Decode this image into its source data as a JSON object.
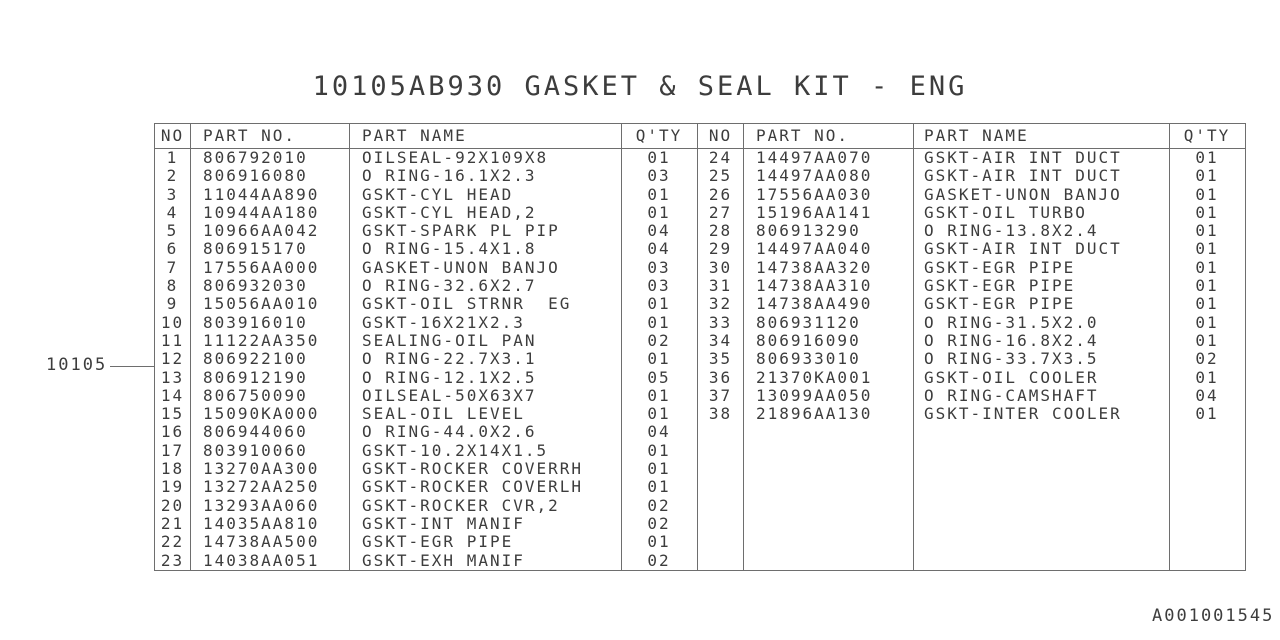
{
  "title": "10105AB930 GASKET & SEAL KIT - ENG",
  "figure_label": "10105",
  "doc_number": "A001001545",
  "colors": {
    "ink": "#3d3d3d",
    "line": "#6e6e6e"
  },
  "tables": [
    {
      "headers": {
        "no": "NO",
        "part_no": "PART NO.",
        "part_name": "PART NAME",
        "qty": "Q'TY"
      },
      "rows": [
        {
          "no": "1",
          "part_no": "806792010",
          "part_name": "OILSEAL-92X109X8",
          "qty": "01"
        },
        {
          "no": "2",
          "part_no": "806916080",
          "part_name": "O RING-16.1X2.3",
          "qty": "03"
        },
        {
          "no": "3",
          "part_no": "11044AA890",
          "part_name": "GSKT-CYL HEAD",
          "qty": "01"
        },
        {
          "no": "4",
          "part_no": "10944AA180",
          "part_name": "GSKT-CYL HEAD,2",
          "qty": "01"
        },
        {
          "no": "5",
          "part_no": "10966AA042",
          "part_name": "GSKT-SPARK PL PIP",
          "qty": "04"
        },
        {
          "no": "6",
          "part_no": "806915170",
          "part_name": "O RING-15.4X1.8",
          "qty": "04"
        },
        {
          "no": "7",
          "part_no": "17556AA000",
          "part_name": "GASKET-UNON BANJO",
          "qty": "03"
        },
        {
          "no": "8",
          "part_no": "806932030",
          "part_name": "O RING-32.6X2.7",
          "qty": "03"
        },
        {
          "no": "9",
          "part_no": "15056AA010",
          "part_name": "GSKT-OIL STRNR  EG",
          "qty": "01"
        },
        {
          "no": "10",
          "part_no": "803916010",
          "part_name": "GSKT-16X21X2.3",
          "qty": "01"
        },
        {
          "no": "11",
          "part_no": "11122AA350",
          "part_name": "SEALING-OIL PAN",
          "qty": "02"
        },
        {
          "no": "12",
          "part_no": "806922100",
          "part_name": "O RING-22.7X3.1",
          "qty": "01"
        },
        {
          "no": "13",
          "part_no": "806912190",
          "part_name": "O RING-12.1X2.5",
          "qty": "05"
        },
        {
          "no": "14",
          "part_no": "806750090",
          "part_name": "OILSEAL-50X63X7",
          "qty": "01"
        },
        {
          "no": "15",
          "part_no": "15090KA000",
          "part_name": "SEAL-OIL LEVEL",
          "qty": "01"
        },
        {
          "no": "16",
          "part_no": "806944060",
          "part_name": "O RING-44.0X2.6",
          "qty": "04"
        },
        {
          "no": "17",
          "part_no": "803910060",
          "part_name": "GSKT-10.2X14X1.5",
          "qty": "01"
        },
        {
          "no": "18",
          "part_no": "13270AA300",
          "part_name": "GSKT-ROCKER COVERRH",
          "qty": "01"
        },
        {
          "no": "19",
          "part_no": "13272AA250",
          "part_name": "GSKT-ROCKER COVERLH",
          "qty": "01"
        },
        {
          "no": "20",
          "part_no": "13293AA060",
          "part_name": "GSKT-ROCKER CVR,2",
          "qty": "02"
        },
        {
          "no": "21",
          "part_no": "14035AA810",
          "part_name": "GSKT-INT MANIF",
          "qty": "02"
        },
        {
          "no": "22",
          "part_no": "14738AA500",
          "part_name": "GSKT-EGR PIPE",
          "qty": "01"
        },
        {
          "no": "23",
          "part_no": "14038AA051",
          "part_name": "GSKT-EXH MANIF",
          "qty": "02"
        }
      ]
    },
    {
      "headers": {
        "no": "NO",
        "part_no": "PART NO.",
        "part_name": "PART NAME",
        "qty": "Q'TY"
      },
      "rows": [
        {
          "no": "24",
          "part_no": "14497AA070",
          "part_name": "GSKT-AIR INT DUCT",
          "qty": "01"
        },
        {
          "no": "25",
          "part_no": "14497AA080",
          "part_name": "GSKT-AIR INT DUCT",
          "qty": "01"
        },
        {
          "no": "26",
          "part_no": "17556AA030",
          "part_name": "GASKET-UNON BANJO",
          "qty": "01"
        },
        {
          "no": "27",
          "part_no": "15196AA141",
          "part_name": "GSKT-OIL TURBO",
          "qty": "01"
        },
        {
          "no": "28",
          "part_no": "806913290",
          "part_name": "O RING-13.8X2.4",
          "qty": "01"
        },
        {
          "no": "29",
          "part_no": "14497AA040",
          "part_name": "GSKT-AIR INT DUCT",
          "qty": "01"
        },
        {
          "no": "30",
          "part_no": "14738AA320",
          "part_name": "GSKT-EGR PIPE",
          "qty": "01"
        },
        {
          "no": "31",
          "part_no": "14738AA310",
          "part_name": "GSKT-EGR PIPE",
          "qty": "01"
        },
        {
          "no": "32",
          "part_no": "14738AA490",
          "part_name": "GSKT-EGR PIPE",
          "qty": "01"
        },
        {
          "no": "33",
          "part_no": "806931120",
          "part_name": "O RING-31.5X2.0",
          "qty": "01"
        },
        {
          "no": "34",
          "part_no": "806916090",
          "part_name": "O RING-16.8X2.4",
          "qty": "01"
        },
        {
          "no": "35",
          "part_no": "806933010",
          "part_name": "O RING-33.7X3.5",
          "qty": "02"
        },
        {
          "no": "36",
          "part_no": "21370KA001",
          "part_name": "GSKT-OIL COOLER",
          "qty": "01"
        },
        {
          "no": "37",
          "part_no": "13099AA050",
          "part_name": "O RING-CAMSHAFT",
          "qty": "04"
        },
        {
          "no": "38",
          "part_no": "21896AA130",
          "part_name": "GSKT-INTER COOLER",
          "qty": "01"
        }
      ]
    }
  ]
}
